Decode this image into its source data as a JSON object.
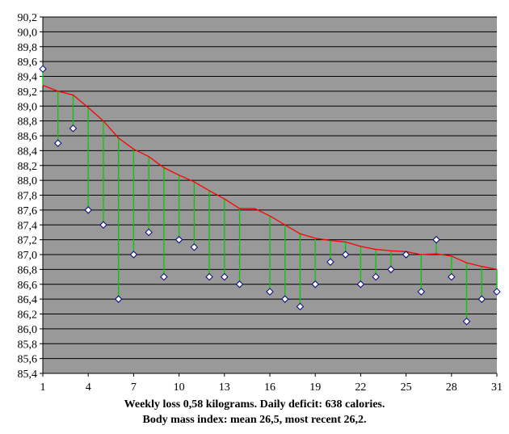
{
  "chart_data": {
    "type": "line",
    "x": [
      1,
      2,
      3,
      4,
      5,
      6,
      7,
      8,
      9,
      10,
      11,
      12,
      13,
      14,
      15,
      16,
      17,
      18,
      19,
      20,
      21,
      22,
      23,
      24,
      25,
      26,
      27,
      28,
      29,
      30,
      31
    ],
    "series": [
      {
        "values": [
          89.5,
          88.5,
          88.7,
          87.6,
          87.4,
          86.4,
          87.0,
          87.3,
          86.7,
          87.2,
          87.1,
          86.7,
          86.7,
          86.6,
          null,
          86.5,
          86.4,
          86.3,
          86.6,
          86.9,
          87.0,
          86.6,
          86.7,
          86.8,
          87.0,
          86.5,
          87.2,
          86.7,
          86.1,
          86.4,
          86.5
        ],
        "color": "#ffffff",
        "marker": "diamond"
      },
      {
        "values": [
          89.28,
          89.2,
          89.15,
          88.98,
          88.8,
          88.57,
          88.42,
          88.32,
          88.17,
          88.07,
          87.98,
          87.86,
          87.75,
          87.62,
          87.62,
          87.52,
          87.4,
          87.28,
          87.22,
          87.19,
          87.17,
          87.11,
          87.07,
          87.05,
          87.04,
          87.0,
          87.01,
          86.98,
          86.89,
          86.84,
          86.8
        ],
        "color": "#ff0000"
      }
    ],
    "connector_color": "#00cc00",
    "plot_background": "#999999",
    "ylim": [
      85.4,
      90.2
    ],
    "y_ticks": [
      "85,4",
      "85,6",
      "85,8",
      "86,0",
      "86,2",
      "86,4",
      "86,6",
      "86,8",
      "87,0",
      "87,2",
      "87,4",
      "87,6",
      "87,8",
      "88,0",
      "88,2",
      "88,4",
      "88,6",
      "88,8",
      "89,0",
      "89,2",
      "89,4",
      "89,6",
      "89,8",
      "90,0",
      "90,2"
    ],
    "x_ticks": [
      "1",
      "4",
      "7",
      "10",
      "13",
      "16",
      "19",
      "22",
      "25",
      "28",
      "31"
    ],
    "x_tick_values": [
      1,
      4,
      7,
      10,
      13,
      16,
      19,
      22,
      25,
      28,
      31
    ],
    "xlim": [
      1,
      31
    ],
    "grid": true,
    "captions": [
      "Weekly loss 0,58 kilograms. Daily deficit: 638 calories.",
      "Body mass index: mean 26,5, most recent 26,2."
    ]
  }
}
